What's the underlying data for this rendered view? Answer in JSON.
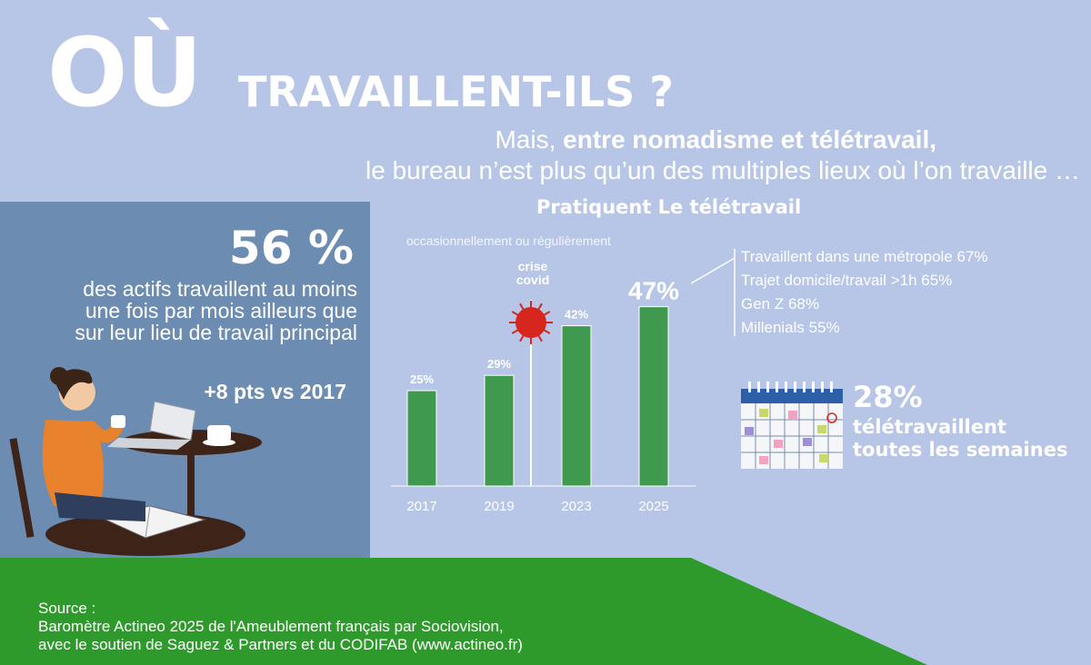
{
  "header": {
    "title_big": "OÙ",
    "title_rest": "TRAVAILLENT-ILS ?",
    "subtitle_prefix": "Mais, ",
    "subtitle_bold": "entre nomadisme et télétravail,",
    "subtitle_line2": "le bureau n’est plus qu’un des multiples lieux où l’on travaille …"
  },
  "left_panel": {
    "stat": "56 %",
    "text": "des actifs travaillent au moins une fois par mois ailleurs que sur leur lieu de travail principal",
    "delta": "+8 pts vs 2017"
  },
  "chart_data": {
    "type": "bar",
    "title": "Pratiquent Le télétravail",
    "subtitle": "occasionnellement ou régulièrement",
    "categories": [
      "2017",
      "2019",
      "2023",
      "2025"
    ],
    "values": [
      25,
      29,
      42,
      47
    ],
    "value_labels": [
      "25%",
      "29%",
      "42%",
      "47%"
    ],
    "ylim": [
      0,
      50
    ],
    "bar_color": "#3f9a4f",
    "annotation": "crise covid",
    "annotation_position": "between 2019 and 2023"
  },
  "details": {
    "items": [
      "Travaillent dans une métropole 67%",
      "Trajet domicile/travail >1h 65%",
      "Gen Z 68%",
      "Millenials 55%"
    ]
  },
  "weekly": {
    "pct": "28%",
    "line1": "télétravaillent",
    "line2": "toutes les semaines"
  },
  "footer": {
    "source_label": "Source :",
    "line1": "Baromètre Actineo 2025 de l'Ameublement français par Sociovision,",
    "line2": "avec le soutien de Saguez & Partners et du CODIFAB (www.actineo.fr)"
  },
  "colors": {
    "background": "#b7c6e6",
    "panel": "#6c8cb2",
    "footer_green": "#2f9a2c",
    "bar": "#3f9a4f",
    "virus": "#d7261e"
  }
}
